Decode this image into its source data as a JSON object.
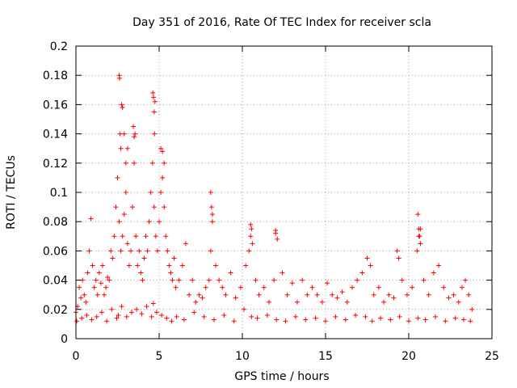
{
  "chart_data": {
    "type": "scatter",
    "title": "Day 351 of 2016, Rate Of TEC Index for receiver scla",
    "xlabel": "GPS time / hours",
    "ylabel": "ROTI / TECUs",
    "xlim": [
      0,
      25
    ],
    "ylim": [
      0,
      0.2
    ],
    "x_ticks": [
      "0",
      "5",
      "10",
      "15",
      "20",
      "25"
    ],
    "y_ticks": [
      "0",
      "0.02",
      "0.04",
      "0.06",
      "0.08",
      "0.1",
      "0.12",
      "0.14",
      "0.16",
      "0.18",
      "0.2"
    ],
    "grid": true,
    "marker": "+",
    "series_color": "#ff0000",
    "series": [
      {
        "name": "ROTI",
        "x": [
          0.0,
          0.1,
          0.2,
          0.3,
          0.4,
          0.5,
          0.6,
          0.7,
          0.8,
          0.9,
          1.0,
          1.1,
          1.2,
          1.3,
          1.4,
          1.5,
          1.6,
          1.7,
          1.8,
          1.9,
          2.0,
          2.1,
          2.2,
          2.3,
          2.4,
          2.5,
          2.6,
          2.7,
          2.8,
          2.9,
          3.0,
          3.1,
          3.2,
          3.3,
          3.4,
          3.5,
          3.6,
          3.7,
          3.8,
          3.9,
          4.0,
          4.1,
          4.2,
          4.3,
          4.4,
          4.5,
          4.6,
          4.7,
          4.8,
          4.9,
          5.0,
          5.1,
          5.2,
          5.3,
          5.4,
          5.5,
          5.6,
          5.7,
          5.8,
          5.9,
          6.0,
          6.2,
          6.4,
          6.6,
          6.8,
          7.0,
          7.2,
          7.4,
          7.6,
          7.8,
          8.0,
          8.1,
          8.2,
          8.4,
          8.6,
          8.8,
          9.0,
          9.3,
          9.6,
          9.9,
          10.2,
          10.4,
          10.5,
          10.6,
          10.8,
          11.0,
          11.3,
          11.6,
          11.9,
          12.0,
          12.1,
          12.4,
          12.7,
          13.0,
          13.3,
          13.6,
          13.9,
          14.2,
          14.5,
          14.8,
          15.1,
          15.4,
          15.7,
          16.0,
          16.3,
          16.6,
          16.9,
          17.2,
          17.5,
          17.7,
          17.9,
          18.2,
          18.5,
          18.8,
          19.1,
          19.3,
          19.4,
          19.6,
          19.9,
          20.2,
          20.5,
          20.6,
          20.7,
          20.9,
          21.2,
          21.5,
          21.8,
          22.1,
          22.4,
          22.7,
          23.0,
          23.2,
          23.4,
          23.6,
          23.8,
          0.05,
          0.35,
          0.65,
          0.95,
          1.25,
          1.55,
          1.85,
          2.15,
          2.45,
          2.55,
          2.75,
          3.05,
          3.35,
          3.65,
          3.95,
          4.25,
          4.55,
          4.65,
          4.85,
          5.15,
          5.45,
          5.75,
          6.05,
          6.5,
          7.1,
          7.7,
          8.3,
          8.9,
          9.5,
          10.1,
          10.55,
          10.9,
          11.5,
          12.05,
          12.6,
          13.2,
          13.8,
          14.4,
          15.0,
          15.6,
          16.2,
          16.8,
          17.4,
          17.8,
          18.3,
          18.9,
          19.45,
          20.0,
          20.55,
          21.0,
          21.6,
          22.2,
          22.8,
          23.3,
          23.7,
          2.6,
          2.62,
          2.65,
          2.7,
          2.75,
          2.8,
          2.9,
          3.0,
          3.1,
          3.45,
          3.5,
          3.55,
          4.62,
          4.66,
          4.7,
          4.72,
          4.75,
          5.1,
          5.2,
          5.3,
          8.1,
          8.15,
          8.2,
          10.5,
          10.55,
          12.0,
          20.55,
          20.6,
          20.65,
          20.7
        ],
        "y": [
          0.018,
          0.022,
          0.035,
          0.028,
          0.04,
          0.03,
          0.025,
          0.045,
          0.06,
          0.082,
          0.05,
          0.035,
          0.04,
          0.03,
          0.045,
          0.038,
          0.05,
          0.03,
          0.035,
          0.042,
          0.04,
          0.06,
          0.055,
          0.07,
          0.09,
          0.11,
          0.08,
          0.06,
          0.07,
          0.085,
          0.1,
          0.065,
          0.05,
          0.06,
          0.09,
          0.12,
          0.07,
          0.05,
          0.06,
          0.045,
          0.04,
          0.055,
          0.07,
          0.06,
          0.08,
          0.1,
          0.12,
          0.09,
          0.07,
          0.06,
          0.08,
          0.1,
          0.11,
          0.09,
          0.07,
          0.06,
          0.05,
          0.045,
          0.04,
          0.055,
          0.035,
          0.04,
          0.05,
          0.065,
          0.03,
          0.04,
          0.025,
          0.03,
          0.028,
          0.035,
          0.04,
          0.06,
          0.08,
          0.05,
          0.04,
          0.035,
          0.03,
          0.045,
          0.028,
          0.035,
          0.05,
          0.06,
          0.07,
          0.065,
          0.04,
          0.03,
          0.035,
          0.025,
          0.04,
          0.072,
          0.068,
          0.045,
          0.03,
          0.038,
          0.025,
          0.04,
          0.03,
          0.035,
          0.03,
          0.025,
          0.038,
          0.03,
          0.028,
          0.032,
          0.025,
          0.035,
          0.04,
          0.045,
          0.055,
          0.05,
          0.03,
          0.035,
          0.025,
          0.03,
          0.028,
          0.06,
          0.055,
          0.04,
          0.03,
          0.035,
          0.06,
          0.07,
          0.075,
          0.04,
          0.03,
          0.045,
          0.05,
          0.035,
          0.028,
          0.03,
          0.025,
          0.035,
          0.04,
          0.03,
          0.02,
          0.012,
          0.014,
          0.016,
          0.013,
          0.015,
          0.018,
          0.012,
          0.02,
          0.014,
          0.016,
          0.022,
          0.015,
          0.018,
          0.02,
          0.017,
          0.022,
          0.015,
          0.024,
          0.018,
          0.016,
          0.014,
          0.012,
          0.015,
          0.013,
          0.018,
          0.015,
          0.013,
          0.016,
          0.012,
          0.02,
          0.015,
          0.014,
          0.016,
          0.013,
          0.012,
          0.015,
          0.013,
          0.014,
          0.012,
          0.015,
          0.013,
          0.016,
          0.015,
          0.012,
          0.014,
          0.013,
          0.015,
          0.012,
          0.014,
          0.013,
          0.015,
          0.012,
          0.014,
          0.013,
          0.012,
          0.18,
          0.178,
          0.14,
          0.13,
          0.16,
          0.158,
          0.14,
          0.12,
          0.13,
          0.145,
          0.138,
          0.14,
          0.168,
          0.165,
          0.155,
          0.14,
          0.162,
          0.13,
          0.128,
          0.12,
          0.1,
          0.09,
          0.085,
          0.078,
          0.075,
          0.074,
          0.085,
          0.075,
          0.07,
          0.065
        ]
      }
    ]
  }
}
